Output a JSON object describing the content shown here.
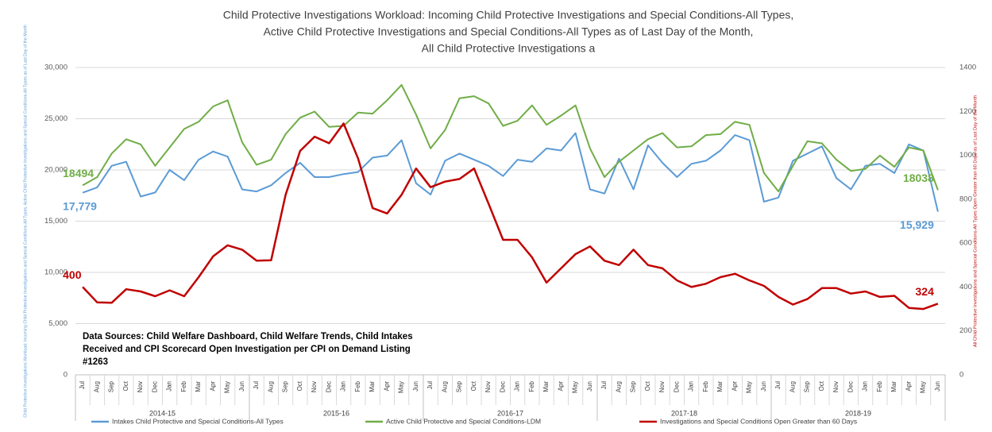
{
  "chart_data": {
    "type": "line",
    "title": [
      "Child Protective Investigations Workload: Incoming Child Protective Investigations and Special Conditions-All Types,",
      "Active Child Protective Investigations and Special Conditions-All Types as of Last Day of the Month,",
      "All Child Protective Investigations a"
    ],
    "y_label": "Child Protective Investigations Workload: Incoming Child Protective Investigations and Special Conditions-All Types, Active Child Protective Investigations and Special Conditions-All Types as of Last Day of the Month",
    "y2_label": "All Child Protective Investigations and Special Conditions-All Types Open Greater than 60 Days as of Last Day of the Month",
    "annotation": "Data Sources: Child Welfare Dashboard, Child Welfare Trends, Child Intakes Received and CPI Scorecard Open Investigation per CPI on Demand Listing #1263",
    "year_groups": [
      "2014-15",
      "2015-16",
      "2016-17",
      "2017-18",
      "2018-19"
    ],
    "categories": [
      "Jul",
      "Aug",
      "Sep",
      "Oct",
      "Nov",
      "Dec",
      "Jan",
      "Feb",
      "Mar",
      "Apr",
      "May",
      "Jun",
      "Jul",
      "Aug",
      "Sep",
      "Oct",
      "Nov",
      "Dec",
      "Jan",
      "Feb",
      "Mar",
      "Apr",
      "May",
      "Jun",
      "Jul",
      "Aug",
      "Sep",
      "Oct",
      "Nov",
      "Dec",
      "Jan",
      "Feb",
      "Mar",
      "Apr",
      "May",
      "Jun",
      "Jul",
      "Aug",
      "Sep",
      "Oct",
      "Nov",
      "Dec",
      "Jan",
      "Feb",
      "Mar",
      "Apr",
      "May",
      "Jun",
      "Jul",
      "Aug",
      "Sep",
      "Oct",
      "Nov",
      "Dec",
      "Jan",
      "Feb",
      "Mar",
      "Apr",
      "May",
      "Jun"
    ],
    "series": [
      {
        "name": "Intakes Child Protective and Special Conditions-All Types",
        "color": "#5b9bd5",
        "values": [
          17779,
          18300,
          20400,
          20800,
          17400,
          17800,
          20000,
          19000,
          21000,
          21800,
          21300,
          18100,
          17900,
          18500,
          19700,
          20700,
          19300,
          19300,
          19600,
          19800,
          21200,
          21400,
          22900,
          18700,
          17600,
          20900,
          21600,
          21000,
          20400,
          19400,
          21000,
          20800,
          22100,
          21900,
          23600,
          18100,
          17700,
          21100,
          18100,
          22400,
          20700,
          19300,
          20600,
          20900,
          21900,
          23400,
          22900,
          16900,
          17300,
          20900,
          21600,
          22300,
          19200,
          18100,
          20400,
          20600,
          19700,
          22500,
          21900,
          15929
        ],
        "value_labels": [
          "17,779",
          null,
          null,
          null,
          null,
          null,
          null,
          null,
          null,
          null,
          null,
          null,
          null,
          null,
          null,
          null,
          null,
          null,
          null,
          null,
          null,
          null,
          null,
          null,
          null,
          null,
          null,
          null,
          null,
          null,
          null,
          null,
          null,
          null,
          null,
          null,
          null,
          null,
          null,
          null,
          null,
          null,
          null,
          null,
          null,
          null,
          null,
          null,
          null,
          null,
          null,
          null,
          null,
          null,
          null,
          null,
          null,
          null,
          null,
          "15,929"
        ]
      },
      {
        "name": "Active Child Protective and Special Conditions-LDM",
        "color": "#70ad47",
        "values": [
          18494,
          19300,
          21600,
          23000,
          22500,
          20400,
          22200,
          24000,
          24700,
          26200,
          26800,
          22700,
          20500,
          21000,
          23500,
          25100,
          25700,
          24200,
          24300,
          25600,
          25500,
          26800,
          28300,
          25400,
          22100,
          23900,
          27000,
          27200,
          26500,
          24300,
          24800,
          26300,
          24400,
          25300,
          26300,
          22100,
          19300,
          20800,
          21900,
          23000,
          23600,
          22200,
          22300,
          23400,
          23500,
          24700,
          24400,
          19700,
          17900,
          20400,
          22800,
          22600,
          21000,
          19900,
          20100,
          21400,
          20300,
          22200,
          21900,
          18038
        ],
        "value_labels": [
          "18494",
          null,
          null,
          null,
          null,
          null,
          null,
          null,
          null,
          null,
          null,
          null,
          null,
          null,
          null,
          null,
          null,
          null,
          null,
          null,
          null,
          null,
          null,
          null,
          null,
          null,
          null,
          null,
          null,
          null,
          null,
          null,
          null,
          null,
          null,
          null,
          null,
          null,
          null,
          null,
          null,
          null,
          null,
          null,
          null,
          null,
          null,
          null,
          null,
          null,
          null,
          null,
          null,
          null,
          null,
          null,
          null,
          null,
          null,
          "18038"
        ]
      },
      {
        "name": "Investigations and Special Conditions Open Greater than 60 Days",
        "color": "#c00000",
        "axis": "y2",
        "values": [
          400,
          330,
          328,
          390,
          380,
          358,
          385,
          358,
          445,
          540,
          590,
          570,
          520,
          522,
          820,
          1020,
          1085,
          1055,
          1145,
          985,
          760,
          735,
          820,
          940,
          855,
          880,
          892,
          940,
          780,
          615,
          615,
          535,
          420,
          485,
          550,
          585,
          520,
          500,
          570,
          500,
          485,
          430,
          400,
          415,
          445,
          460,
          430,
          405,
          355,
          320,
          345,
          395,
          395,
          370,
          380,
          355,
          360,
          305,
          300,
          324
        ],
        "value_labels": [
          "400",
          null,
          null,
          null,
          null,
          null,
          null,
          null,
          null,
          null,
          null,
          null,
          null,
          null,
          null,
          null,
          null,
          null,
          null,
          null,
          null,
          null,
          null,
          null,
          null,
          null,
          null,
          null,
          null,
          null,
          null,
          null,
          null,
          null,
          null,
          null,
          null,
          null,
          null,
          null,
          null,
          null,
          null,
          null,
          null,
          null,
          null,
          null,
          null,
          null,
          null,
          null,
          null,
          null,
          null,
          null,
          null,
          null,
          null,
          "324"
        ]
      }
    ],
    "ylim": [
      0,
      30000
    ],
    "yticks": [
      0,
      {
        "value": 5000,
        "label": "5,000"
      },
      {
        "value": 10000,
        "label": "10,000"
      },
      {
        "value": 15000,
        "label": "15,000"
      },
      {
        "value": 20000,
        "label": "20,000"
      },
      {
        "value": 25000,
        "label": "25,000"
      },
      {
        "value": 30000,
        "label": "30,000"
      }
    ],
    "y2lim": [
      0,
      1400
    ],
    "y2ticks": [
      0,
      200,
      400,
      600,
      800,
      1000,
      1200,
      1400
    ],
    "grid": true
  }
}
